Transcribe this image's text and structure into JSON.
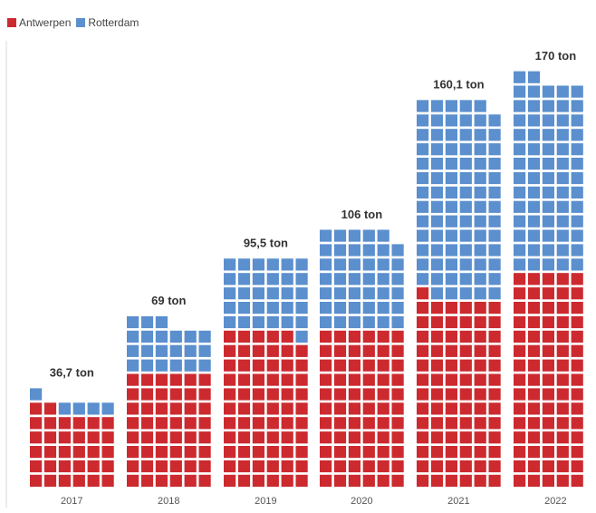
{
  "legend": [
    {
      "name": "Antwerpen",
      "color": "#cc2a2f"
    },
    {
      "name": "Rotterdam",
      "color": "#5b8fce"
    }
  ],
  "chart_data": {
    "type": "waffle-bar",
    "categories": [
      "2017",
      "2018",
      "2019",
      "2020",
      "2021",
      "2022"
    ],
    "totals_labels": [
      "36,7 ton",
      "69 ton",
      "95,5 ton",
      "106 ton",
      "160,1 ton",
      "170 ton"
    ],
    "totals": [
      36.7,
      69,
      95.5,
      106,
      160.1,
      170
    ],
    "series": [
      {
        "name": "Antwerpen",
        "values": [
          31.5,
          48.3,
          64.8,
          65.5,
          78.6,
          89
        ]
      },
      {
        "name": "Rotterdam",
        "values": [
          5.2,
          20.7,
          30.7,
          40.5,
          81.5,
          81
        ]
      }
    ],
    "grid": false,
    "legend_position": "top-left"
  }
}
